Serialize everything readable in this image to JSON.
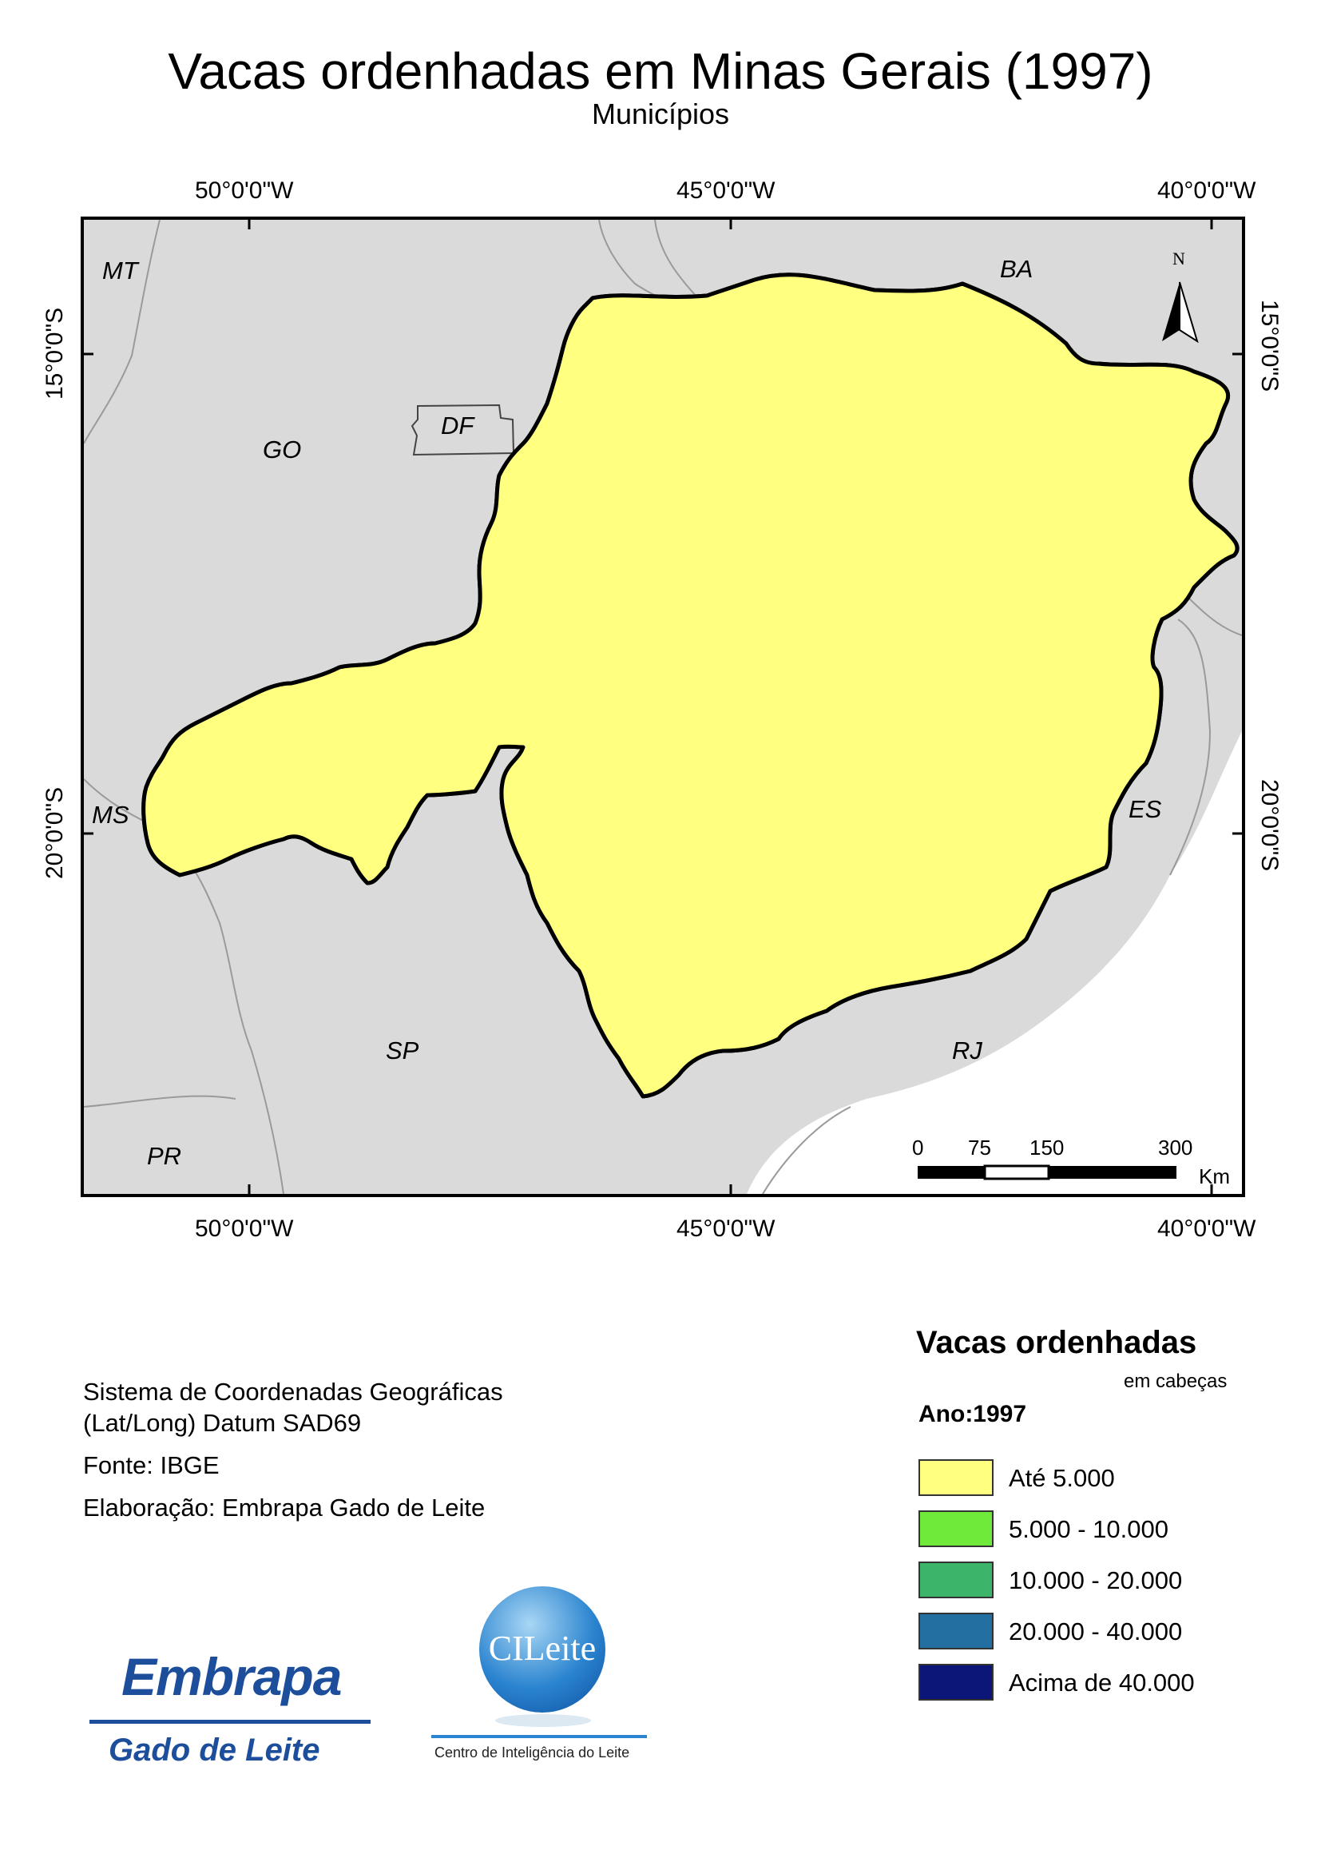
{
  "title": "Vacas ordenhadas em Minas Gerais (1997)",
  "subtitle": "Municípios",
  "graticule": {
    "lon_labels": [
      "50°0'0\"W",
      "45°0'0\"W",
      "40°0'0\"W"
    ],
    "lat_labels": [
      "15°0'0\"S",
      "20°0'0\"S"
    ]
  },
  "states": {
    "mt": "MT",
    "go": "GO",
    "df": "DF",
    "ba": "BA",
    "ms": "MS",
    "es": "ES",
    "sp": "SP",
    "rj": "RJ",
    "pr": "PR"
  },
  "north_arrow": {
    "label": "N"
  },
  "scale_bar": {
    "ticks": [
      "0",
      "75",
      "150",
      "300"
    ],
    "unit": "Km"
  },
  "info": {
    "crs_line1": "Sistema de Coordenadas Geográficas",
    "crs_line2": "(Lat/Long) Datum SAD69",
    "source": "Fonte: IBGE",
    "author": "Elaboração: Embrapa Gado de Leite"
  },
  "legend": {
    "title": "Vacas ordenhadas",
    "subtitle": "em cabeças",
    "year": "Ano:1997",
    "classes": [
      {
        "label": "Até 5.000",
        "color": "#ffff80"
      },
      {
        "label": "5.000 - 10.000",
        "color": "#70ea3a"
      },
      {
        "label": "10.000 - 20.000",
        "color": "#3cb46a"
      },
      {
        "label": "20.000 - 40.000",
        "color": "#236fa1"
      },
      {
        "label": "Acima de 40.000",
        "color": "#0c1578"
      }
    ]
  },
  "logos": {
    "embrapa_word": "Embrapa",
    "embrapa_sub": "Gado de Leite",
    "cileite_word": "CILeite",
    "cileite_sub": "Centro de Inteligência do Leite"
  },
  "colors": {
    "background_region": "#dadada",
    "border": "#000000",
    "ocean": "#ffffff"
  }
}
